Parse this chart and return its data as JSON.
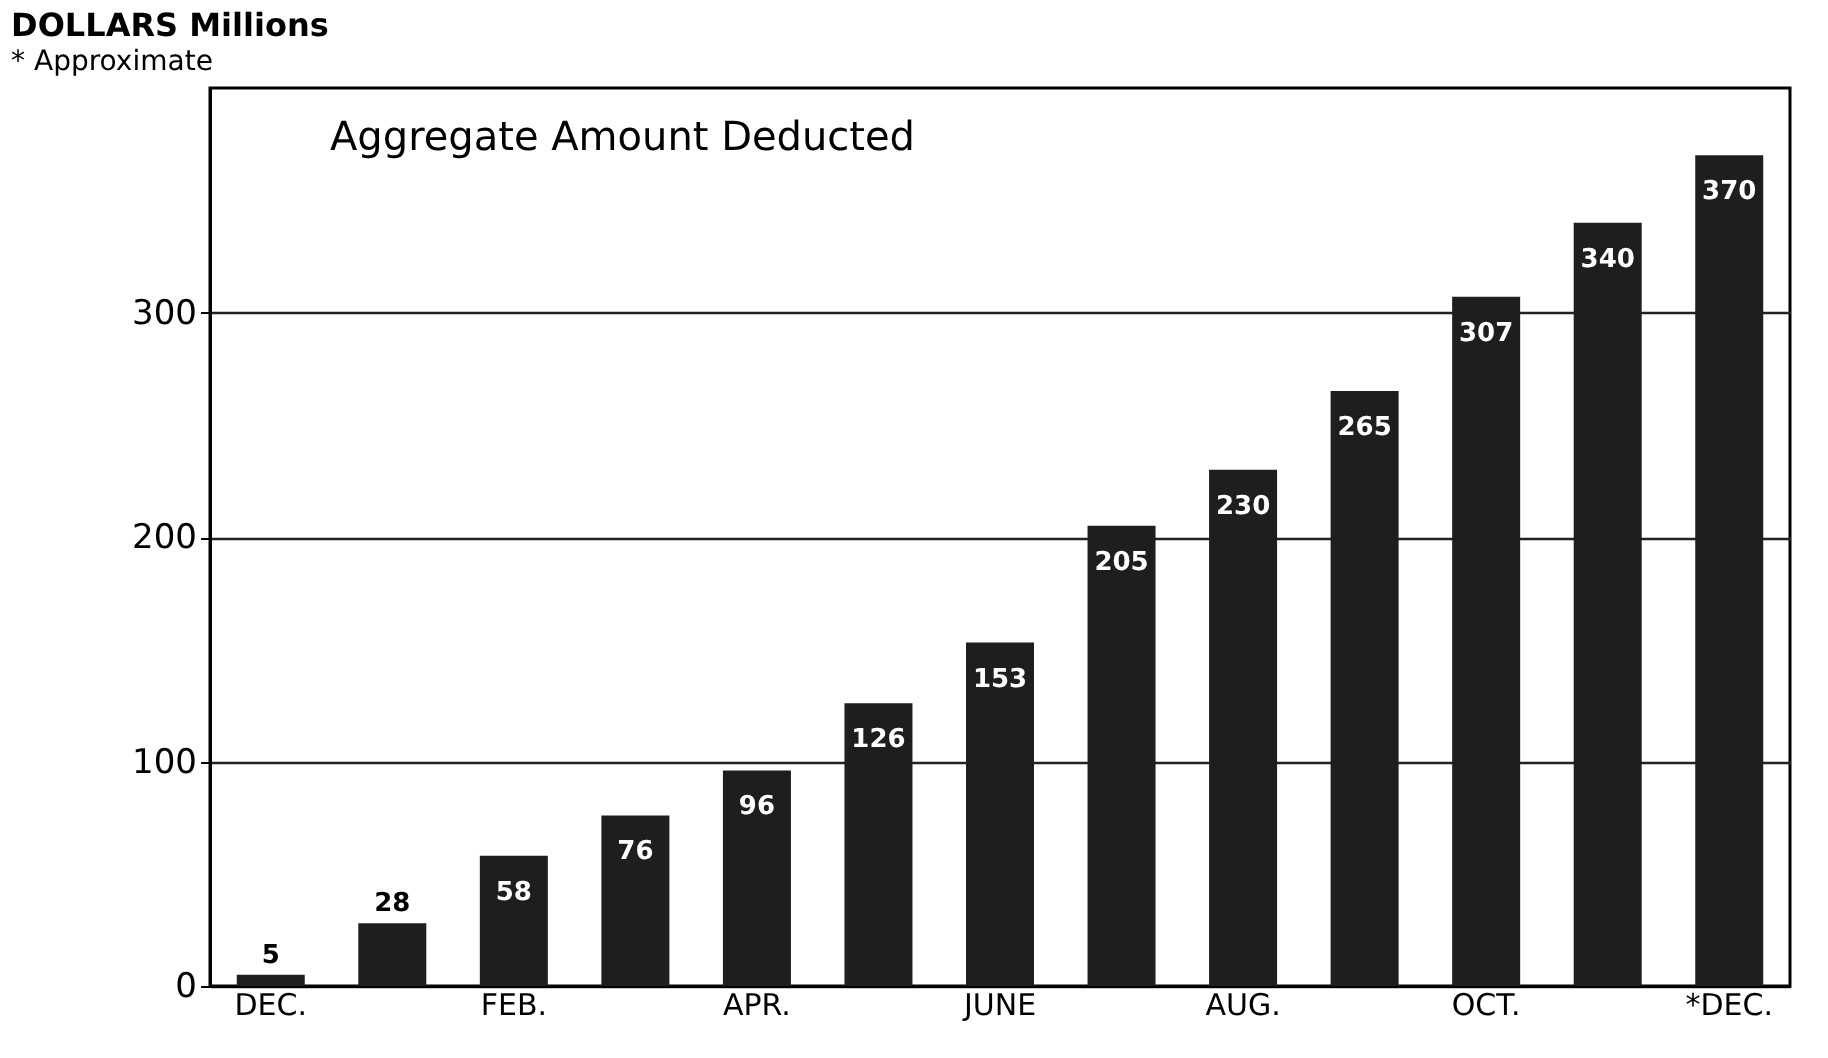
{
  "chart_data": {
    "type": "bar",
    "title": "Aggregate Amount Deducted",
    "ylabel": "DOLLARS Millions",
    "categories": [
      "DEC.",
      null,
      "FEB.",
      null,
      "APR.",
      null,
      "JUNE",
      null,
      "AUG.",
      null,
      "OCT.",
      null,
      "*DEC."
    ],
    "values": [
      5,
      28,
      58,
      76,
      96,
      126,
      153,
      205,
      230,
      265,
      307,
      340,
      370
    ],
    "color": "#1e1e1e",
    "ylim": [
      0,
      400
    ],
    "yticks": [
      0,
      100,
      200,
      300
    ],
    "grid": "y",
    "data_labels": true,
    "annotations": [
      "* Approximate"
    ]
  }
}
